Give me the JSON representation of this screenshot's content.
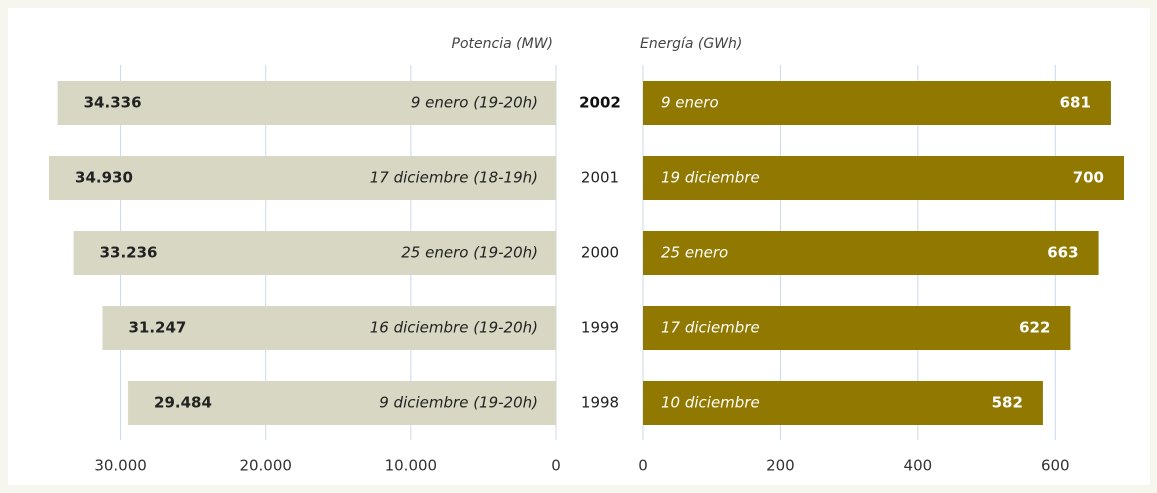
{
  "chart_data": [
    {
      "type": "hbar",
      "xlabel": "Potencia (MW)",
      "reversed": true,
      "color": "#d7d7c3",
      "label_color": "#222222",
      "categories": [
        "2002",
        "2001",
        "2000",
        "1999",
        "1998"
      ],
      "values": [
        34336,
        34930,
        33236,
        31247,
        29484
      ],
      "value_labels": [
        "34.336",
        "34.930",
        "33.236",
        "31.247",
        "29.484"
      ],
      "annotations": [
        "9 enero (19-20h)",
        "17 diciembre (18-19h)",
        "25 enero (19-20h)",
        "16 diciembre (19-20h)",
        "9 diciembre (19-20h)"
      ],
      "xlim": [
        0,
        35000
      ],
      "xticks": [
        0,
        {
          "value": 10000,
          "label": "10.000"
        },
        {
          "value": 20000,
          "label": "20.000"
        },
        {
          "value": 30000,
          "label": "30.000"
        }
      ],
      "grid": true
    },
    {
      "type": "hbar",
      "xlabel": "Energía (GWh)",
      "reversed": false,
      "color": "#917800",
      "label_color": "#ffffff",
      "values": [
        681,
        700,
        663,
        622,
        582
      ],
      "annotations": [
        "9 enero",
        "19 diciembre",
        "25 enero",
        "17 diciembre",
        "10 diciembre"
      ],
      "xlim": [
        0,
        700
      ],
      "xticks": [
        0,
        200,
        400,
        600
      ],
      "grid": true
    }
  ]
}
